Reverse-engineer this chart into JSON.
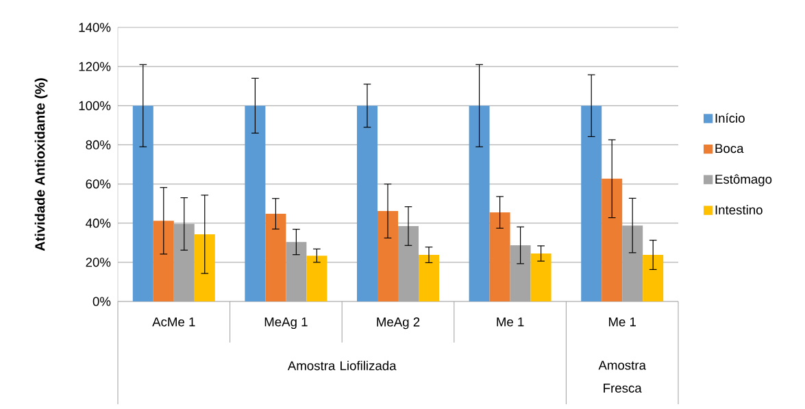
{
  "chart_data": {
    "type": "bar",
    "ylabel": "Atividade Antioxidante (%)",
    "categories": [
      "AcMe 1",
      "MeAg 1",
      "MeAg 2",
      "Me 1",
      "Me 1"
    ],
    "annotations": [
      "Amostra Liofilizada",
      "Amostra Fresca"
    ],
    "series": [
      {
        "name": "Início",
        "color": "#5b9bd5",
        "values": [
          100,
          100,
          100,
          100,
          100
        ],
        "errors": [
          21,
          14,
          11,
          21,
          15.8
        ]
      },
      {
        "name": "Boca",
        "color": "#ed7d31",
        "values": [
          41.2,
          44.8,
          46.2,
          45.5,
          62.7
        ],
        "errors": [
          17,
          7.8,
          13.8,
          8.1,
          19.9
        ]
      },
      {
        "name": "Estômago",
        "color": "#a5a5a5",
        "values": [
          39.6,
          30.4,
          38.5,
          28.7,
          38.8
        ],
        "errors": [
          13.4,
          6.5,
          9.9,
          9.4,
          13.9
        ]
      },
      {
        "name": "Intestino",
        "color": "#ffc000",
        "values": [
          34.3,
          23.4,
          23.8,
          24.5,
          23.8
        ],
        "errors": [
          20,
          3.4,
          4,
          3.9,
          7.5
        ]
      }
    ],
    "ylim": [
      0,
      140
    ],
    "yticks": [
      {
        "value": 0,
        "label": "0%"
      },
      {
        "value": 20,
        "label": "20%"
      },
      {
        "value": 40,
        "label": "40%"
      },
      {
        "value": 60,
        "label": "60%"
      },
      {
        "value": 80,
        "label": "80%"
      },
      {
        "value": 100,
        "label": "100%"
      },
      {
        "value": 120,
        "label": "120%"
      },
      {
        "value": 140,
        "label": "140%"
      }
    ],
    "grid": "y",
    "legend": "right"
  }
}
